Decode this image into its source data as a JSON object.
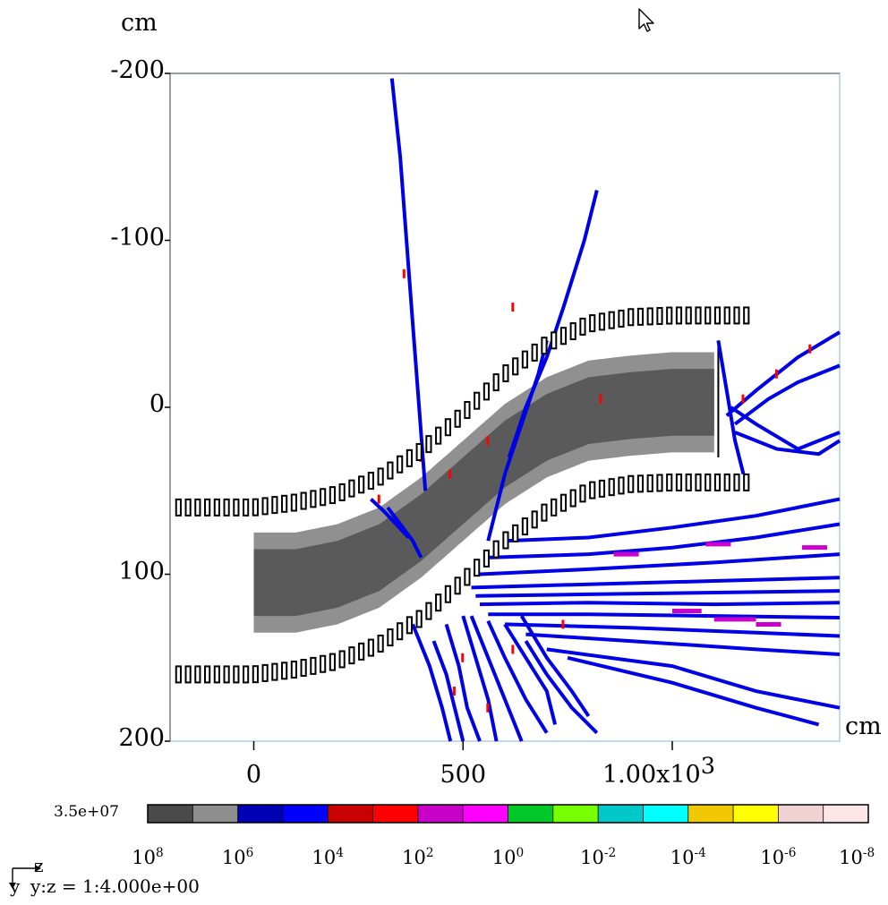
{
  "chart_data": {
    "type": "heatmap",
    "x_unit": "cm",
    "y_unit": "cm",
    "xlim": [
      -200,
      1400
    ],
    "ylim": [
      -200,
      200
    ],
    "y_inverted": true,
    "x_ticks": [
      {
        "value": 0,
        "label": "0"
      },
      {
        "value": 500,
        "label": "500"
      },
      {
        "value": 1000,
        "label": "1.00x10",
        "sup": "3"
      }
    ],
    "y_ticks": [
      {
        "value": -200,
        "label": "-200"
      },
      {
        "value": -100,
        "label": "-100"
      },
      {
        "value": 0,
        "label": "0"
      },
      {
        "value": 100,
        "label": "100"
      },
      {
        "value": 200,
        "label": "200"
      }
    ],
    "scale_max_label": "3.5e+07",
    "color_scale": [
      "#4a4a4a",
      "#8e8e8e",
      "#0000b4",
      "#0000ff",
      "#c80000",
      "#ff0000",
      "#c800c8",
      "#ff00ff",
      "#00c828",
      "#78ff00",
      "#00c8c8",
      "#00ffff",
      "#f0c800",
      "#ffff00",
      "#f0d2d2",
      "#ffe6e6"
    ],
    "scale_labels": [
      {
        "base": "10",
        "exp": "8"
      },
      {
        "base": "10",
        "exp": "6"
      },
      {
        "base": "10",
        "exp": "4"
      },
      {
        "base": "10",
        "exp": "2"
      },
      {
        "base": "10",
        "exp": "0"
      },
      {
        "base": "10",
        "exp": "-2"
      },
      {
        "base": "10",
        "exp": "-4"
      },
      {
        "base": "10",
        "exp": "-6"
      },
      {
        "base": "10",
        "exp": "-8"
      }
    ],
    "aspect_label": "y:z = 1:4.000e+00",
    "axis_z": "z",
    "axis_y": "y",
    "beam_band": {
      "z": [
        0,
        100,
        200,
        300,
        400,
        500,
        600,
        700,
        800,
        900,
        1000,
        1100
      ],
      "center_y": [
        105,
        105,
        100,
        90,
        72,
        50,
        28,
        12,
        2,
        -1,
        -3,
        -3
      ],
      "halfwidth_outer": 30,
      "halfwidth_inner": 20,
      "colors": [
        "#909090",
        "#5a5a5a"
      ]
    },
    "magnets": {
      "z": [
        -180,
        0,
        100,
        200,
        300,
        400,
        500,
        600,
        700,
        800,
        900,
        1000,
        1100,
        1190
      ],
      "center_y": [
        110,
        110,
        107,
        102,
        92,
        76,
        54,
        30,
        12,
        0,
        -4,
        -5,
        -5,
        -5
      ],
      "halfgap": 50
    },
    "tracks": {
      "color": "#0000e6",
      "accent_color": "#ff0000",
      "magenta_color": "#cc00cc",
      "lines": [
        {
          "z": [
            330,
            350,
            380,
            395,
            410
          ],
          "y": [
            -197,
            -150,
            -50,
            0,
            50
          ]
        },
        {
          "z": [
            820,
            790,
            740,
            700,
            650,
            610
          ],
          "y": [
            -130,
            -100,
            -60,
            -30,
            0,
            30
          ]
        },
        {
          "z": [
            700,
            680,
            640,
            600,
            560
          ],
          "y": [
            -40,
            -20,
            10,
            40,
            80
          ]
        },
        {
          "z": [
            1130,
            1200,
            1300,
            1400
          ],
          "y": [
            5,
            -10,
            -30,
            -45
          ]
        },
        {
          "z": [
            1150,
            1230,
            1300,
            1400
          ],
          "y": [
            10,
            -5,
            -15,
            -25
          ]
        },
        {
          "z": [
            1140,
            1200,
            1300,
            1400
          ],
          "y": [
            0,
            10,
            25,
            15
          ]
        },
        {
          "z": [
            1150,
            1250,
            1350,
            1400
          ],
          "y": [
            15,
            25,
            28,
            20
          ]
        },
        {
          "z": [
            600,
            800,
            1000,
            1200,
            1400
          ],
          "y": [
            80,
            78,
            72,
            65,
            55
          ]
        },
        {
          "z": [
            560,
            800,
            1000,
            1200,
            1400
          ],
          "y": [
            90,
            88,
            84,
            78,
            70
          ]
        },
        {
          "z": [
            540,
            800,
            1100,
            1400
          ],
          "y": [
            100,
            97,
            93,
            88
          ]
        },
        {
          "z": [
            520,
            800,
            1100,
            1400
          ],
          "y": [
            108,
            106,
            104,
            102
          ]
        },
        {
          "z": [
            530,
            800,
            1100,
            1400
          ],
          "y": [
            113,
            112,
            111,
            110
          ]
        },
        {
          "z": [
            540,
            800,
            1100,
            1400
          ],
          "y": [
            118,
            117,
            118,
            117
          ]
        },
        {
          "z": [
            560,
            800,
            1100,
            1400
          ],
          "y": [
            124,
            124,
            125,
            126
          ]
        },
        {
          "z": [
            600,
            900,
            1200,
            1400
          ],
          "y": [
            130,
            132,
            135,
            137
          ]
        },
        {
          "z": [
            650,
            900,
            1200,
            1400
          ],
          "y": [
            136,
            140,
            145,
            148
          ]
        },
        {
          "z": [
            700,
            1000,
            1200,
            1400
          ],
          "y": [
            145,
            155,
            170,
            180
          ]
        },
        {
          "z": [
            750,
            1000,
            1200,
            1350
          ],
          "y": [
            150,
            165,
            180,
            190
          ]
        },
        {
          "z": [
            430,
            460,
            480,
            500
          ],
          "y": [
            140,
            160,
            180,
            200
          ]
        },
        {
          "z": [
            460,
            490,
            510,
            540
          ],
          "y": [
            130,
            155,
            180,
            200
          ]
        },
        {
          "z": [
            500,
            530,
            560,
            580
          ],
          "y": [
            125,
            150,
            175,
            200
          ]
        },
        {
          "z": [
            520,
            560,
            600,
            640
          ],
          "y": [
            125,
            150,
            175,
            200
          ]
        },
        {
          "z": [
            560,
            600,
            650,
            700
          ],
          "y": [
            128,
            150,
            175,
            195
          ]
        },
        {
          "z": [
            380,
            420,
            450,
            470
          ],
          "y": [
            130,
            155,
            180,
            200
          ]
        },
        {
          "z": [
            600,
            650,
            700,
            720
          ],
          "y": [
            130,
            150,
            170,
            190
          ]
        },
        {
          "z": [
            640,
            700,
            760,
            800
          ],
          "y": [
            125,
            150,
            170,
            185
          ]
        },
        {
          "z": [
            650,
            700,
            760,
            820
          ],
          "y": [
            140,
            160,
            180,
            195
          ]
        },
        {
          "z": [
            320,
            350,
            380,
            400
          ],
          "y": [
            60,
            70,
            80,
            90
          ]
        },
        {
          "z": [
            280,
            310,
            340,
            370
          ],
          "y": [
            55,
            62,
            70,
            78
          ]
        },
        {
          "z": [
            1110,
            1130,
            1150,
            1170
          ],
          "y": [
            -40,
            -10,
            20,
            40
          ]
        }
      ],
      "magenta_segments": [
        {
          "z": [
            1000,
            1070
          ],
          "y": [
            122,
            122
          ]
        },
        {
          "z": [
            1100,
            1200
          ],
          "y": [
            127,
            127
          ]
        },
        {
          "z": [
            1200,
            1260
          ],
          "y": [
            130,
            130
          ]
        },
        {
          "z": [
            1310,
            1370
          ],
          "y": [
            84,
            84
          ]
        },
        {
          "z": [
            860,
            920
          ],
          "y": [
            88,
            88
          ]
        },
        {
          "z": [
            1080,
            1140
          ],
          "y": [
            82,
            82
          ]
        }
      ],
      "red_ticks": [
        {
          "z": 360,
          "y": -80
        },
        {
          "z": 400,
          "y": 30
        },
        {
          "z": 470,
          "y": 40
        },
        {
          "z": 560,
          "y": 20
        },
        {
          "z": 620,
          "y": -60
        },
        {
          "z": 300,
          "y": 55
        },
        {
          "z": 740,
          "y": -40
        },
        {
          "z": 480,
          "y": 170
        },
        {
          "z": 560,
          "y": 180
        },
        {
          "z": 500,
          "y": 150
        },
        {
          "z": 1170,
          "y": -5
        },
        {
          "z": 1330,
          "y": -35
        },
        {
          "z": 1250,
          "y": -20
        },
        {
          "z": 830,
          "y": -5
        },
        {
          "z": 620,
          "y": 145
        },
        {
          "z": 740,
          "y": 130
        }
      ]
    }
  },
  "labels": {
    "y_unit": "cm",
    "x_unit": "cm"
  }
}
